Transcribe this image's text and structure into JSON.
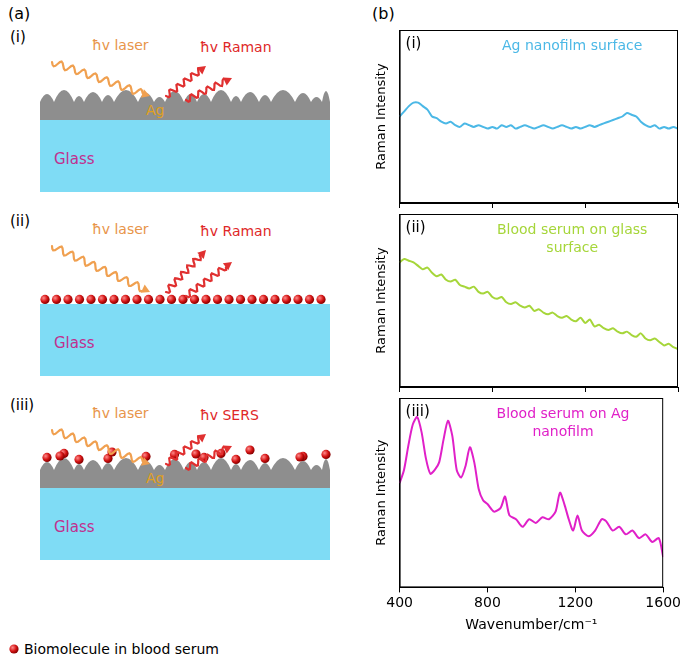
{
  "panel_a": {
    "letter": "(a)",
    "schematics": [
      {
        "label": "(i)",
        "incident": "ħv laser",
        "scattered": "ħv Raman",
        "metal": "Ag",
        "substrate": "Glass",
        "molecules": false
      },
      {
        "label": "(ii)",
        "incident": "ħv laser",
        "scattered": "ħv Raman",
        "substrate": "Glass",
        "molecules": true
      },
      {
        "label": "(iii)",
        "incident": "ħv laser",
        "scattered": "ħv SERS",
        "metal": "Ag",
        "substrate": "Glass",
        "molecules": true
      }
    ],
    "key": "Biomolecule in blood serum"
  },
  "panel_b": {
    "letter": "(b)"
  },
  "chart_data": [
    {
      "type": "line",
      "panel": "(i)",
      "title": "Ag nanofilm surface",
      "color": "#4bb8e6",
      "y_label": "Raman Intensity",
      "x": [
        400,
        420,
        440,
        460,
        480,
        500,
        520,
        540,
        560,
        580,
        600,
        620,
        640,
        660,
        680,
        700,
        720,
        740,
        760,
        780,
        800,
        820,
        840,
        860,
        880,
        900,
        920,
        940,
        960,
        980,
        1000,
        1020,
        1040,
        1060,
        1080,
        1100,
        1120,
        1140,
        1160,
        1180,
        1200,
        1220,
        1240,
        1260,
        1280,
        1300,
        1320,
        1340,
        1360,
        1380,
        1400,
        1420,
        1440,
        1460,
        1480,
        1500,
        1520,
        1540,
        1560,
        1580,
        1600
      ],
      "values": [
        50,
        53,
        56,
        58,
        58,
        56,
        54,
        50,
        49,
        47,
        46,
        47,
        45,
        44,
        46,
        45,
        44,
        45,
        44,
        43,
        44,
        43,
        45,
        44,
        45,
        43,
        44,
        45,
        44,
        43,
        44,
        45,
        44,
        43,
        44,
        45,
        44,
        43,
        44,
        43,
        44,
        45,
        44,
        45,
        46,
        47,
        48,
        49,
        50,
        52,
        51,
        50,
        47,
        45,
        44,
        45,
        43,
        44,
        43,
        44,
        43
      ],
      "xlim": [
        400,
        1600
      ],
      "xticks": [
        400,
        800,
        1200,
        1600
      ],
      "ylim": [
        0,
        100
      ],
      "tick_labels": false
    },
    {
      "type": "line",
      "panel": "(ii)",
      "title": "Blood serum on glass surface",
      "color": "#a6d63a",
      "y_label": "Raman Intensity",
      "x": [
        400,
        420,
        440,
        460,
        480,
        500,
        520,
        540,
        560,
        580,
        600,
        620,
        640,
        660,
        680,
        700,
        720,
        740,
        760,
        780,
        800,
        820,
        840,
        860,
        880,
        900,
        920,
        940,
        960,
        980,
        1000,
        1020,
        1040,
        1060,
        1080,
        1100,
        1120,
        1140,
        1160,
        1180,
        1200,
        1220,
        1240,
        1260,
        1280,
        1300,
        1320,
        1340,
        1360,
        1380,
        1400,
        1420,
        1440,
        1460,
        1480,
        1500,
        1520,
        1540,
        1560,
        1580,
        1600
      ],
      "values": [
        72,
        74,
        73,
        72,
        70,
        68,
        69,
        66,
        64,
        65,
        62,
        61,
        62,
        59,
        58,
        57,
        58,
        55,
        54,
        55,
        52,
        51,
        52,
        49,
        48,
        49,
        47,
        46,
        47,
        44,
        45,
        43,
        42,
        43,
        41,
        40,
        41,
        39,
        38,
        40,
        37,
        39,
        35,
        36,
        34,
        33,
        34,
        32,
        31,
        32,
        30,
        29,
        31,
        28,
        27,
        28,
        26,
        24,
        25,
        23,
        22
      ],
      "xlim": [
        400,
        1600
      ],
      "xticks": [
        400,
        800,
        1200,
        1600
      ],
      "ylim": [
        0,
        100
      ],
      "tick_labels": false
    },
    {
      "type": "line",
      "panel": "(iii)",
      "title": "Blood serum on Ag nanofilm",
      "color": "#e020c8",
      "y_label": "Raman Intensity",
      "x_label": "Wavenumber/cm⁻¹",
      "x": [
        400,
        420,
        440,
        460,
        480,
        500,
        520,
        540,
        560,
        580,
        600,
        620,
        640,
        660,
        680,
        700,
        720,
        740,
        760,
        780,
        800,
        830,
        860,
        880,
        900,
        930,
        960,
        990,
        1020,
        1050,
        1080,
        1110,
        1130,
        1150,
        1170,
        1190,
        1210,
        1230,
        1260,
        1290,
        1320,
        1340,
        1370,
        1400,
        1430,
        1460,
        1490,
        1520,
        1550,
        1580,
        1600
      ],
      "values": [
        55,
        62,
        75,
        86,
        90,
        82,
        68,
        60,
        62,
        66,
        78,
        88,
        80,
        62,
        58,
        64,
        74,
        66,
        52,
        46,
        44,
        40,
        42,
        48,
        38,
        36,
        32,
        36,
        34,
        37,
        36,
        40,
        50,
        44,
        36,
        30,
        38,
        30,
        27,
        30,
        36,
        35,
        30,
        32,
        28,
        30,
        26,
        28,
        24,
        26,
        16
      ],
      "xlim": [
        400,
        1600
      ],
      "xticks": [
        400,
        800,
        1200,
        1600
      ],
      "ylim": [
        0,
        100
      ],
      "tick_labels": "x"
    }
  ]
}
